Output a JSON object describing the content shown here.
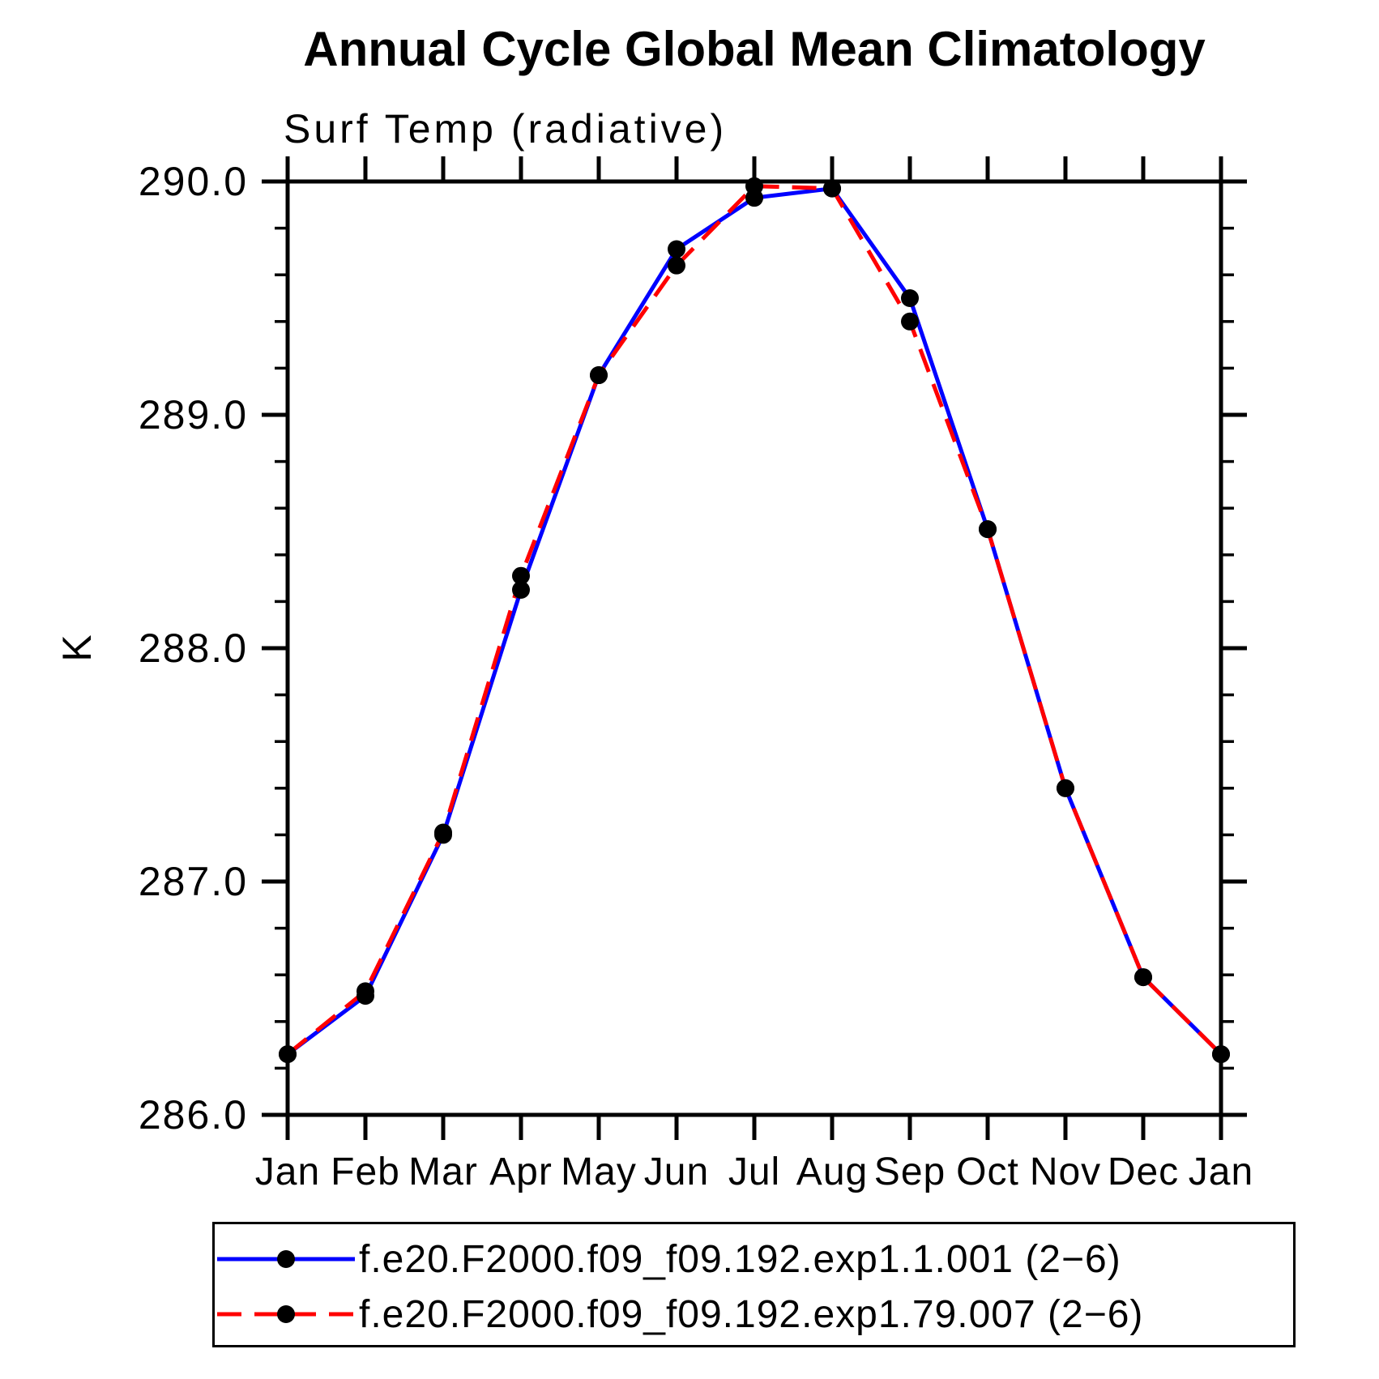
{
  "chart_data": {
    "type": "line",
    "title": "Annual Cycle Global Mean Climatology",
    "subtitle": "Surf Temp (radiative)",
    "ylabel": "K",
    "xlabel": "",
    "categories": [
      "Jan",
      "Feb",
      "Mar",
      "Apr",
      "May",
      "Jun",
      "Jul",
      "Aug",
      "Sep",
      "Oct",
      "Nov",
      "Dec",
      "Jan"
    ],
    "ylim": [
      286.0,
      290.0
    ],
    "yticks": [
      286.0,
      287.0,
      288.0,
      289.0,
      290.0
    ],
    "ytick_labels": [
      "286.0",
      "287.0",
      "288.0",
      "289.0",
      "290.0"
    ],
    "minor_tick_step": 0.2,
    "grid": false,
    "legend_position": "bottom",
    "axis_color": "#000000",
    "marker_color": "#000000",
    "series": [
      {
        "name": "f.e20.F2000.f09_f09.192.exp1.1.001 (2−6)",
        "color": "#0000ff",
        "line_style": "solid",
        "marker": "filled-circle",
        "values": [
          286.26,
          286.51,
          287.2,
          288.25,
          289.17,
          289.71,
          289.93,
          289.97,
          289.5,
          288.51,
          287.4,
          286.59,
          286.26
        ]
      },
      {
        "name": "f.e20.F2000.f09_f09.192.exp1.79.007 (2−6)",
        "color": "#ff0000",
        "line_style": "dashed",
        "marker": "filled-circle",
        "values": [
          286.26,
          286.53,
          287.21,
          288.31,
          289.17,
          289.64,
          289.98,
          289.97,
          289.4,
          288.51,
          287.4,
          286.59,
          286.26
        ]
      }
    ]
  }
}
